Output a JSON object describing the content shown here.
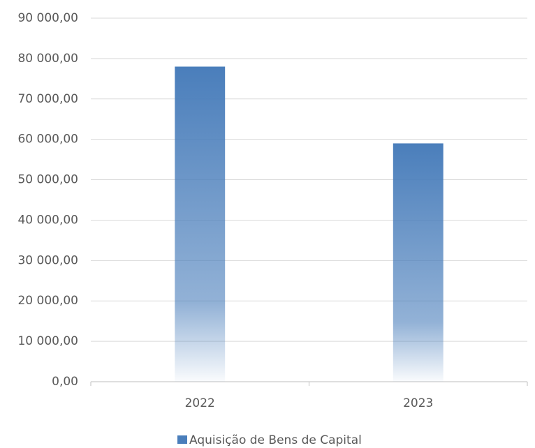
{
  "chart_data": {
    "type": "bar",
    "categories": [
      "2022",
      "2023"
    ],
    "series": [
      {
        "name": "Aquisição de Bens de Capital",
        "color": "#4a7ebb",
        "values": [
          78000,
          59000
        ]
      }
    ],
    "ylim": [
      0,
      90000
    ],
    "yticks": [
      {
        "value": 0,
        "label": "0,00"
      },
      {
        "value": 10000,
        "label": "10 000,00"
      },
      {
        "value": 20000,
        "label": "20 000,00"
      },
      {
        "value": 30000,
        "label": "30 000,00"
      },
      {
        "value": 40000,
        "label": "40 000,00"
      },
      {
        "value": 50000,
        "label": "50 000,00"
      },
      {
        "value": 60000,
        "label": "60 000,00"
      },
      {
        "value": 70000,
        "label": "70 000,00"
      },
      {
        "value": 80000,
        "label": "80 000,00"
      },
      {
        "value": 90000,
        "label": "90 000,00"
      }
    ],
    "grid": true,
    "legend": "bottom"
  }
}
